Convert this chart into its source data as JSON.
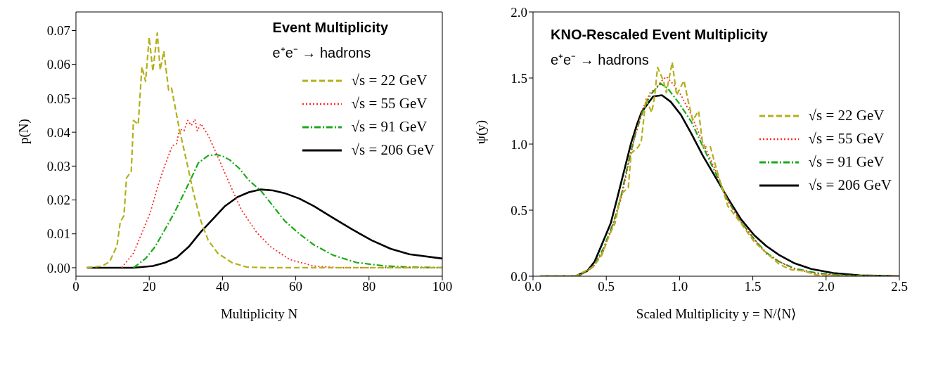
{
  "chart_data": [
    {
      "type": "line",
      "title": "Event Multiplicity",
      "subtitle": "e⁺e⁻ → hadrons",
      "xlabel": "Multiplicity N",
      "ylabel": "p(N)",
      "xlim": [
        0,
        100
      ],
      "ylim": [
        -0.0025,
        0.0755
      ],
      "xticks": [
        0,
        20,
        40,
        60,
        80,
        100
      ],
      "yticks": [
        {
          "value": 0,
          "label": "0.00"
        },
        {
          "value": 0.01,
          "label": "0.01"
        },
        {
          "value": 0.02,
          "label": "0.02"
        },
        {
          "value": 0.03,
          "label": "0.03"
        },
        {
          "value": 0.04,
          "label": "0.04"
        },
        {
          "value": 0.05,
          "label": "0.05"
        },
        {
          "value": 0.06,
          "label": "0.06"
        },
        {
          "value": 0.07,
          "label": "0.07"
        }
      ],
      "legend": "top right",
      "marker": "none",
      "series": [
        {
          "name": "√s = 22 GeV",
          "color": "#b3b01c",
          "line_style": "dashed",
          "x": [
            3,
            7.2,
            9.2,
            11.2,
            12.1,
            13.1,
            13.8,
            15.1,
            15.7,
            17,
            18,
            19,
            20,
            21,
            22.2,
            23,
            24,
            25.3,
            26.1,
            28.2,
            30.2,
            32.1,
            34.1,
            36.1,
            38.7,
            42.6,
            46.6,
            51.8,
            100
          ],
          "values": [
            0,
            0.0005,
            0.0018,
            0.0065,
            0.0135,
            0.0154,
            0.0265,
            0.0284,
            0.0435,
            0.0423,
            0.0593,
            0.055,
            0.068,
            0.058,
            0.0693,
            0.0584,
            0.0639,
            0.0524,
            0.053,
            0.041,
            0.0315,
            0.022,
            0.0138,
            0.0081,
            0.0043,
            0.0015,
            0.0002,
            0,
            0
          ]
        },
        {
          "name": "√s = 55 GeV",
          "color": "#ff2a2a",
          "line_style": "dotted",
          "x": [
            12.5,
            15.7,
            18.4,
            20.3,
            22.3,
            24.3,
            26.3,
            27.5,
            28.2,
            29.5,
            30.5,
            31.5,
            32.5,
            33.1,
            34.1,
            36.1,
            38.7,
            42,
            45.2,
            49.2,
            53.1,
            58.4,
            64.9,
            71.5,
            100
          ],
          "values": [
            0,
            0.0043,
            0.0113,
            0.0163,
            0.0239,
            0.0303,
            0.036,
            0.0366,
            0.041,
            0.0404,
            0.0435,
            0.042,
            0.0438,
            0.0404,
            0.0425,
            0.0391,
            0.0328,
            0.0246,
            0.017,
            0.0106,
            0.0062,
            0.0024,
            0.0005,
            0,
            0
          ]
        },
        {
          "name": "√s = 91 GeV",
          "color": "#1aaa1a",
          "line_style": "dashdot",
          "x": [
            15.7,
            19,
            21.6,
            24.3,
            26.9,
            29.5,
            31.5,
            33.4,
            36.1,
            38.4,
            40.3,
            42,
            44.6,
            47.2,
            50.5,
            53.8,
            57,
            61,
            64.9,
            70.2,
            76.7,
            84.6,
            91,
            100
          ],
          "values": [
            0,
            0.0027,
            0.0062,
            0.0113,
            0.0163,
            0.022,
            0.0265,
            0.0309,
            0.0331,
            0.0334,
            0.0328,
            0.0318,
            0.0293,
            0.0258,
            0.0227,
            0.0182,
            0.0138,
            0.01,
            0.0068,
            0.0037,
            0.0015,
            0.0005,
            0.0002,
            0
          ]
        },
        {
          "name": "√s = 206 GeV",
          "color": "#000000",
          "line_style": "solid",
          "x": [
            3,
            15.7,
            21,
            24.3,
            27.5,
            30.8,
            34.1,
            37.4,
            40.7,
            44,
            47.2,
            50.5,
            53.8,
            57,
            61,
            64.9,
            70.2,
            75.4,
            80.7,
            85.9,
            91,
            100
          ],
          "values": [
            0,
            0,
            0.0005,
            0.0015,
            0.003,
            0.0062,
            0.0106,
            0.0144,
            0.0182,
            0.0208,
            0.0223,
            0.0231,
            0.0228,
            0.022,
            0.0204,
            0.0182,
            0.0147,
            0.0113,
            0.0081,
            0.0056,
            0.004,
            0.0027
          ]
        }
      ]
    },
    {
      "type": "line",
      "title": "KNO-Rescaled Event Multiplicity",
      "subtitle": "e⁺e⁻ → hadrons",
      "xlabel": "Scaled Multiplicity y = N/⟨N⟩",
      "ylabel": "ψ(y)",
      "xlim": [
        0,
        2.5
      ],
      "ylim": [
        0,
        2
      ],
      "xticks": [
        {
          "value": 0,
          "label": "0.0"
        },
        {
          "value": 0.5,
          "label": "0.5"
        },
        {
          "value": 1,
          "label": "1.0"
        },
        {
          "value": 1.5,
          "label": "1.5"
        },
        {
          "value": 2,
          "label": "2.0"
        },
        {
          "value": 2.5,
          "label": "2.5"
        }
      ],
      "yticks": [
        {
          "value": 0,
          "label": "0.0"
        },
        {
          "value": 0.5,
          "label": "0.5"
        },
        {
          "value": 1,
          "label": "1.0"
        },
        {
          "value": 1.5,
          "label": "1.5"
        },
        {
          "value": 2,
          "label": "2.0"
        }
      ],
      "legend": "right",
      "marker": "none",
      "series": [
        {
          "name": "√s = 22 GeV",
          "color": "#b3b01c",
          "line_style": "dashed",
          "x": [
            0.05,
            0.29,
            0.34,
            0.41,
            0.47,
            0.52,
            0.56,
            0.6,
            0.65,
            0.67,
            0.72,
            0.74,
            0.77,
            0.81,
            0.83,
            0.85,
            0.89,
            0.91,
            0.95,
            0.98,
            1.03,
            1.06,
            1.09,
            1.13,
            1.16,
            1.21,
            1.27,
            1.33,
            1.42,
            1.51,
            1.59,
            1.68,
            1.76,
            1.85,
            1.93,
            2.19,
            2.5
          ],
          "values": [
            0,
            0,
            0.03,
            0.07,
            0.16,
            0.31,
            0.4,
            0.62,
            0.67,
            0.93,
            0.98,
            1.03,
            1.34,
            1.24,
            1.36,
            1.58,
            1.48,
            1.39,
            1.62,
            1.37,
            1.48,
            1.32,
            1.18,
            1.25,
            0.98,
            0.98,
            0.74,
            0.53,
            0.4,
            0.26,
            0.18,
            0.09,
            0.05,
            0.04,
            0.01,
            0,
            0
          ]
        },
        {
          "name": "√s = 55 GeV",
          "color": "#ff2a2a",
          "line_style": "dotted",
          "x": [
            0.05,
            0.31,
            0.41,
            0.48,
            0.55,
            0.6,
            0.65,
            0.7,
            0.75,
            0.8,
            0.84,
            0.87,
            0.91,
            0.96,
            1.01,
            1.08,
            1.16,
            1.25,
            1.33,
            1.42,
            1.51,
            1.59,
            1.68,
            1.78,
            1.93,
            2.11,
            2.5
          ],
          "values": [
            0,
            0,
            0.07,
            0.19,
            0.4,
            0.58,
            0.84,
            1.08,
            1.27,
            1.39,
            1.42,
            1.47,
            1.51,
            1.45,
            1.37,
            1.22,
            1.01,
            0.79,
            0.57,
            0.41,
            0.28,
            0.17,
            0.11,
            0.055,
            0.02,
            0.003,
            0
          ]
        },
        {
          "name": "√s = 91 GeV",
          "color": "#1aaa1a",
          "line_style": "dashdot",
          "x": [
            0.05,
            0.31,
            0.41,
            0.48,
            0.55,
            0.6,
            0.65,
            0.7,
            0.75,
            0.8,
            0.87,
            0.92,
            0.99,
            1.08,
            1.16,
            1.25,
            1.33,
            1.42,
            1.51,
            1.59,
            1.68,
            1.78,
            1.93,
            2.11,
            2.5
          ],
          "values": [
            0,
            0,
            0.07,
            0.21,
            0.41,
            0.6,
            0.86,
            1.08,
            1.25,
            1.37,
            1.46,
            1.42,
            1.32,
            1.17,
            0.98,
            0.77,
            0.57,
            0.41,
            0.28,
            0.18,
            0.11,
            0.06,
            0.025,
            0.007,
            0
          ]
        },
        {
          "name": "√s = 206 GeV",
          "color": "#000000",
          "line_style": "solid",
          "x": [
            0.05,
            0.29,
            0.37,
            0.42,
            0.47,
            0.53,
            0.57,
            0.62,
            0.67,
            0.71,
            0.74,
            0.78,
            0.82,
            0.88,
            0.94,
            1.01,
            1.08,
            1.16,
            1.25,
            1.33,
            1.42,
            1.51,
            1.59,
            1.68,
            1.78,
            1.9,
            2.05,
            2.23,
            2.5
          ],
          "values": [
            0,
            0,
            0.04,
            0.11,
            0.24,
            0.4,
            0.57,
            0.79,
            1.01,
            1.15,
            1.24,
            1.3,
            1.36,
            1.37,
            1.32,
            1.22,
            1.08,
            0.91,
            0.74,
            0.59,
            0.43,
            0.31,
            0.23,
            0.16,
            0.1,
            0.055,
            0.024,
            0.007,
            0
          ]
        }
      ]
    }
  ]
}
